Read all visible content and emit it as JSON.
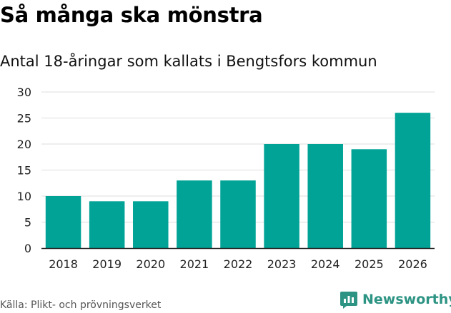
{
  "header": {
    "title": "Så många ska mönstra",
    "subtitle": "Antal 18-åringar som kallats i Bengtsfors kommun"
  },
  "footer": {
    "source": "Källa: Plikt- och prövningsverket",
    "brand": "Newsworthy",
    "brand_icon": "newsworthy-logo-icon"
  },
  "colors": {
    "bar": "#00a396",
    "grid": "#dddddd",
    "axis": "#222222",
    "brand": "#2d9484"
  },
  "chart_data": {
    "type": "bar",
    "title": "Så många ska mönstra",
    "subtitle": "Antal 18-åringar som kallats i Bengtsfors kommun",
    "xlabel": "",
    "ylabel": "",
    "categories": [
      "2018",
      "2019",
      "2020",
      "2021",
      "2022",
      "2023",
      "2024",
      "2025",
      "2026"
    ],
    "values": [
      10,
      9,
      9,
      13,
      13,
      20,
      20,
      19,
      26
    ],
    "ylim": [
      0,
      30
    ],
    "yticks": [
      0,
      5,
      10,
      15,
      20,
      25,
      30
    ],
    "grid": true,
    "legend": "none"
  }
}
